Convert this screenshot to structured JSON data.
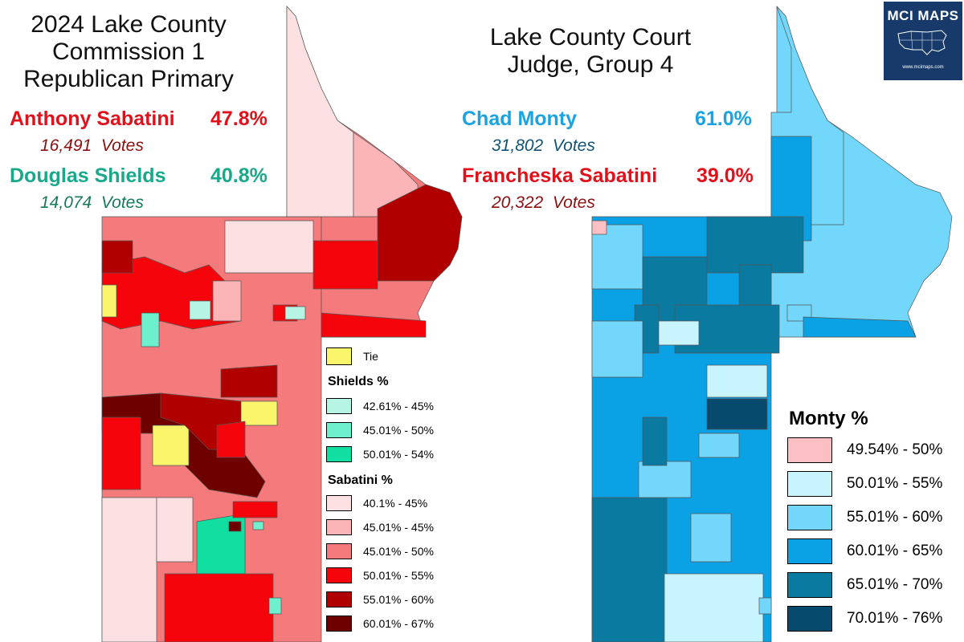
{
  "logo": {
    "title": "MCI MAPS",
    "subtitle": "www.mcimaps.com"
  },
  "left": {
    "title_lines": [
      "2024 Lake County",
      "Commission 1",
      "Republican Primary"
    ],
    "candidates": [
      {
        "name": "Anthony Sabatini",
        "pct": "47.8%",
        "votes_num": "16,491",
        "votes_word": "Votes",
        "color": "#e0111b",
        "votes_color": "#8b0f0f"
      },
      {
        "name": "Douglas Shields",
        "pct": "40.8%",
        "votes_num": "14,074",
        "votes_word": "Votes",
        "color": "#19a889",
        "votes_color": "#157a5c"
      }
    ],
    "legend": {
      "tie_label": "Tie",
      "shields_head": "Shields  %",
      "shields": [
        {
          "label": "42.61% - 45%",
          "color": "#b6f5e4"
        },
        {
          "label": "45.01% - 50%",
          "color": "#6ef0cf"
        },
        {
          "label": "50.01% - 54%",
          "color": "#10dfa1"
        }
      ],
      "sabatini_head": "Sabatini  %",
      "sabatini": [
        {
          "label": "40.1% - 45%",
          "color": "#fde0e1"
        },
        {
          "label": "45.01% - 45%",
          "color": "#fbb5b6"
        },
        {
          "label": "45.01% - 50%",
          "color": "#f47a7b"
        },
        {
          "label": "50.01% - 55%",
          "color": "#f5050b"
        },
        {
          "label": "55.01% - 60%",
          "color": "#b00000"
        },
        {
          "label": "60.01% - 67%",
          "color": "#6e0000"
        }
      ],
      "tie_color": "#fbf56c"
    }
  },
  "right": {
    "title_lines": [
      "Lake County Court",
      "Judge, Group 4"
    ],
    "candidates": [
      {
        "name": "Chad Monty",
        "pct": "61.0%",
        "votes_num": "31,802",
        "votes_word": "Votes",
        "color": "#1aa3e0",
        "votes_color": "#0f5273"
      },
      {
        "name": "Francheska Sabatini",
        "pct": "39.0%",
        "votes_num": "20,322",
        "votes_word": "Votes",
        "color": "#e0111b",
        "votes_color": "#8b0f0f"
      }
    ],
    "legend": {
      "head": "Monty   %",
      "items": [
        {
          "label": "49.54% - 50%",
          "color": "#fcc0c4"
        },
        {
          "label": "50.01% - 55%",
          "color": "#c8f4fd"
        },
        {
          "label": "55.01% - 60%",
          "color": "#72d7fa"
        },
        {
          "label": "60.01% - 65%",
          "color": "#0ba1e5"
        },
        {
          "label": "65.01% - 70%",
          "color": "#0a7aa0"
        },
        {
          "label": "70.01% - 76%",
          "color": "#064a6d"
        }
      ]
    }
  }
}
